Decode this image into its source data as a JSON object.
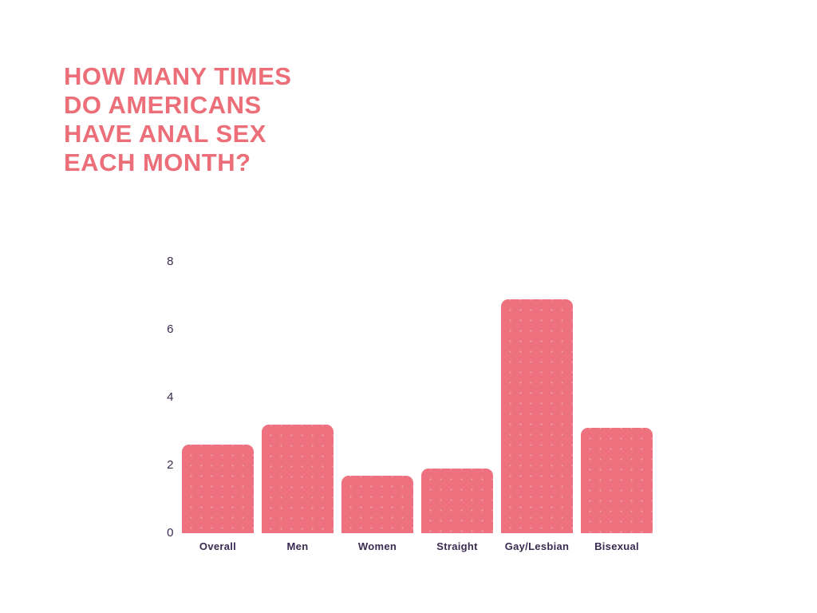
{
  "page": {
    "background_color": "#ffffff"
  },
  "title": {
    "text": "HOW MANY TIMES DO AMERICANS HAVE ANAL SEX EACH MONTH?",
    "lines": [
      "HOW MANY TIMES",
      "DO AMERICANS",
      "HAVE ANAL SEX",
      "EACH MONTH?"
    ],
    "color": "#EC6E79"
  },
  "chart_data": {
    "type": "bar",
    "title": "How many times do Americans have anal sex each month?",
    "categories": [
      "Overall",
      "Men",
      "Women",
      "Straight",
      "Gay/Lesbian",
      "Bisexual"
    ],
    "values": [
      2.6,
      3.2,
      1.7,
      1.9,
      6.9,
      3.1
    ],
    "xlabel": "",
    "ylabel": "",
    "ylim": [
      0,
      8
    ],
    "yticks": [
      0,
      2,
      4,
      6,
      8
    ],
    "grid": false,
    "legend": "none",
    "bar_color": "#ED717E",
    "axis_label_color": "#3A2B50"
  }
}
